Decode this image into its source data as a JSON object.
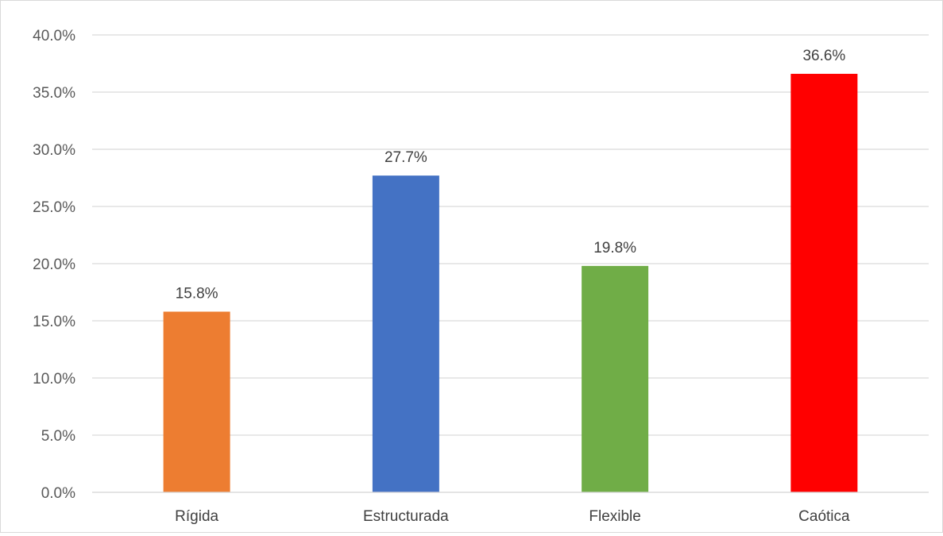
{
  "chart_data": {
    "type": "bar",
    "categories": [
      "Rígida",
      "Estructurada",
      "Flexible",
      "Caótica"
    ],
    "values": [
      15.8,
      27.7,
      19.8,
      36.6
    ],
    "data_labels": [
      "15.8%",
      "27.7%",
      "19.8%",
      "36.6%"
    ],
    "colors": [
      "#ED7D31",
      "#4472C4",
      "#70AD47",
      "#FF0000"
    ],
    "ylim": [
      0,
      40
    ],
    "yticks": [
      0,
      5,
      10,
      15,
      20,
      25,
      30,
      35,
      40
    ],
    "ytick_labels": [
      "0.0%",
      "5.0%",
      "10.0%",
      "15.0%",
      "20.0%",
      "25.0%",
      "30.0%",
      "35.0%",
      "40.0%"
    ],
    "grid": true,
    "legend": false,
    "gridline_color": "#d9d9d9"
  }
}
